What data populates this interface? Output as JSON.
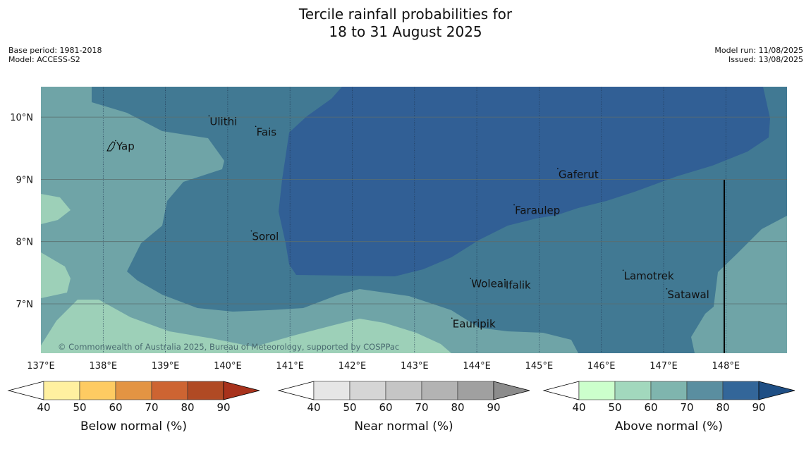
{
  "title": {
    "line1": "Tercile rainfall probabilities for",
    "line2": "18 to 31 August 2025"
  },
  "meta": {
    "base_period": "Base period: 1981-2018",
    "model": "Model: ACCESS-S2",
    "model_run": "Model run: 11/08/2025",
    "issued": "Issued: 13/08/2025"
  },
  "map": {
    "lon_range": [
      137,
      149
    ],
    "lat_range": [
      6.2,
      10.5
    ],
    "lon_ticks": [
      "137°E",
      "138°E",
      "139°E",
      "140°E",
      "141°E",
      "142°E",
      "143°E",
      "144°E",
      "145°E",
      "146°E",
      "147°E",
      "148°E"
    ],
    "lat_ticks": [
      "10°N",
      "9°N",
      "8°N",
      "7°N"
    ],
    "copyright": "© Commonwealth of Australia 2025, Bureau of Meteorology, supported by COSPPac",
    "places": [
      {
        "name": "Yap",
        "lon": 138.2,
        "lat": 9.53
      },
      {
        "name": "Ulithi",
        "lon": 139.7,
        "lat": 9.93
      },
      {
        "name": "Fais",
        "lon": 140.45,
        "lat": 9.76
      },
      {
        "name": "Sorol",
        "lon": 140.38,
        "lat": 8.08
      },
      {
        "name": "Gaferut",
        "lon": 145.3,
        "lat": 9.08
      },
      {
        "name": "Faraulep",
        "lon": 144.6,
        "lat": 8.5
      },
      {
        "name": "Woleai",
        "lon": 143.9,
        "lat": 7.32
      },
      {
        "name": "Ifalik",
        "lon": 144.45,
        "lat": 7.3
      },
      {
        "name": "Lamotrek",
        "lon": 146.35,
        "lat": 7.45
      },
      {
        "name": "Satawal",
        "lon": 147.05,
        "lat": 7.15
      },
      {
        "name": "Eauripik",
        "lon": 143.6,
        "lat": 6.68
      }
    ],
    "colors": {
      "near_50": "#9dd0b8",
      "near_60": "#6fa4a7",
      "mid_70": "#417993",
      "top_80": "#315f95",
      "boundary_line": "#000000"
    }
  },
  "colorbars": [
    {
      "label": "Below normal (%)",
      "ticks": [
        "40",
        "50",
        "60",
        "70",
        "80",
        "90"
      ],
      "colors": [
        "#fff0a0",
        "#fecb62",
        "#e39443",
        "#cd6432",
        "#b04a24"
      ],
      "over_color": "#a8321c"
    },
    {
      "label": "Near normal (%)",
      "ticks": [
        "40",
        "50",
        "60",
        "70",
        "80",
        "90"
      ],
      "colors": [
        "#e6e6e6",
        "#d5d5d5",
        "#c5c5c5",
        "#b3b3b3",
        "#a0a0a0"
      ],
      "over_color": "#8c8c8c"
    },
    {
      "label": "Above normal (%)",
      "ticks": [
        "40",
        "50",
        "60",
        "70",
        "80",
        "90"
      ],
      "colors": [
        "#ccffcc",
        "#a2d8bd",
        "#7fb5ae",
        "#5a8ea0",
        "#336699"
      ],
      "over_color": "#1f4f85"
    }
  ]
}
